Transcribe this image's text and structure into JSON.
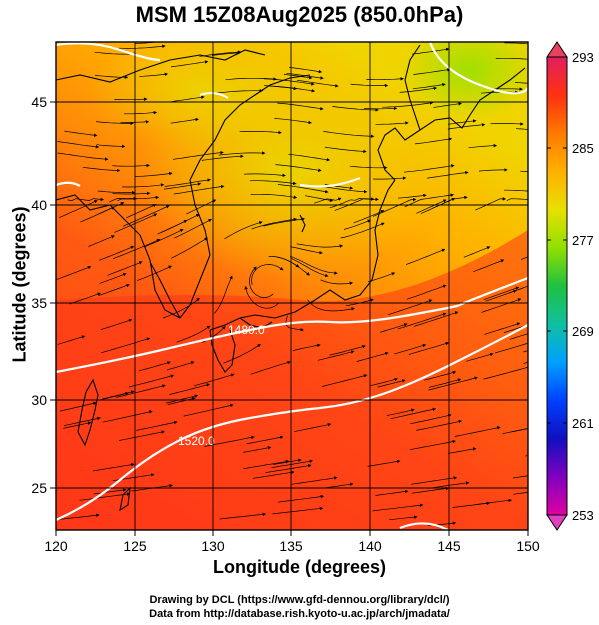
{
  "title": "MSM 15Z08Aug2025 (850.0hPa)",
  "x_axis": {
    "label": "Longitude (degrees)",
    "ticks": [
      "120",
      "125",
      "130",
      "135",
      "140",
      "145",
      "150"
    ]
  },
  "y_axis": {
    "label": "Latitude  (degrees)",
    "ticks": [
      "25",
      "30",
      "35",
      "40",
      "45"
    ]
  },
  "colorbar": {
    "ticks": [
      "293",
      "285",
      "277",
      "269",
      "261",
      "253"
    ],
    "colors": [
      "#e02060",
      "#ff3010",
      "#ff7a00",
      "#ffb000",
      "#e8e000",
      "#90e000",
      "#20c040",
      "#10c0a0",
      "#00a0ff",
      "#0040ff",
      "#1010c0",
      "#8000c0",
      "#e000a0"
    ]
  },
  "contour_labels": [
    "1480.0",
    "1520.0"
  ],
  "map": {
    "extent": {
      "lon": [
        120,
        150
      ],
      "lat": [
        22.5,
        48
      ]
    },
    "background_colors": [
      "#ff3a1a",
      "#ff6a10",
      "#ffa000",
      "#f0d000"
    ]
  },
  "footer": {
    "line1": "Drawing by DCL (https://www.gfd-dennou.org/library/dcl/)",
    "line2": "Data from http://database.rish.kyoto-u.ac.jp/arch/jmadata/"
  }
}
